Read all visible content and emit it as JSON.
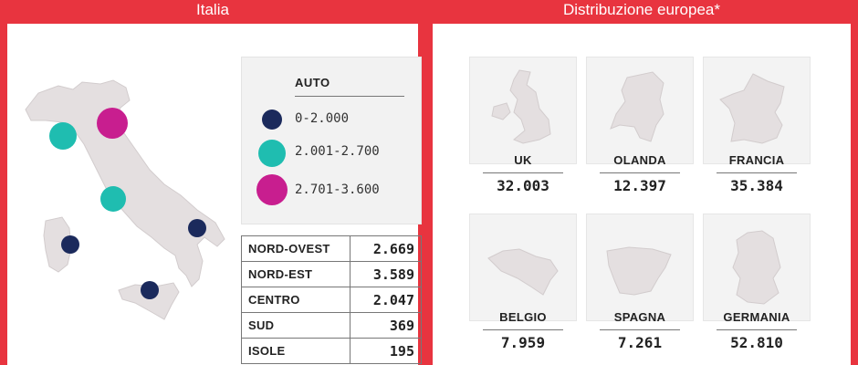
{
  "italia": {
    "title": "Italia",
    "legend": {
      "title": "AUTO",
      "items": [
        {
          "label": "0-2.000",
          "color": "#1b2a5c"
        },
        {
          "label": "2.001-2.700",
          "color": "#1fbdb0"
        },
        {
          "label": "2.701-3.600",
          "color": "#c81e8f"
        }
      ]
    },
    "regions": [
      {
        "name": "NORD-OVEST",
        "value": "2.669"
      },
      {
        "name": "NORD-EST",
        "value": "3.589"
      },
      {
        "name": "CENTRO",
        "value": "2.047"
      },
      {
        "name": "SUD",
        "value": "369"
      },
      {
        "name": "ISOLE",
        "value": "195"
      }
    ]
  },
  "europa": {
    "title": "Distribuzione europea*",
    "countries": [
      {
        "name": "UK",
        "value": "32.003"
      },
      {
        "name": "OLANDA",
        "value": "12.397"
      },
      {
        "name": "FRANCIA",
        "value": "35.384"
      },
      {
        "name": "BELGIO",
        "value": "7.959"
      },
      {
        "name": "SPAGNA",
        "value": "7.261"
      },
      {
        "name": "GERMANIA",
        "value": "52.810"
      }
    ]
  },
  "colors": {
    "accent": "#e8343f",
    "map_fill": "#e4dfe0"
  }
}
